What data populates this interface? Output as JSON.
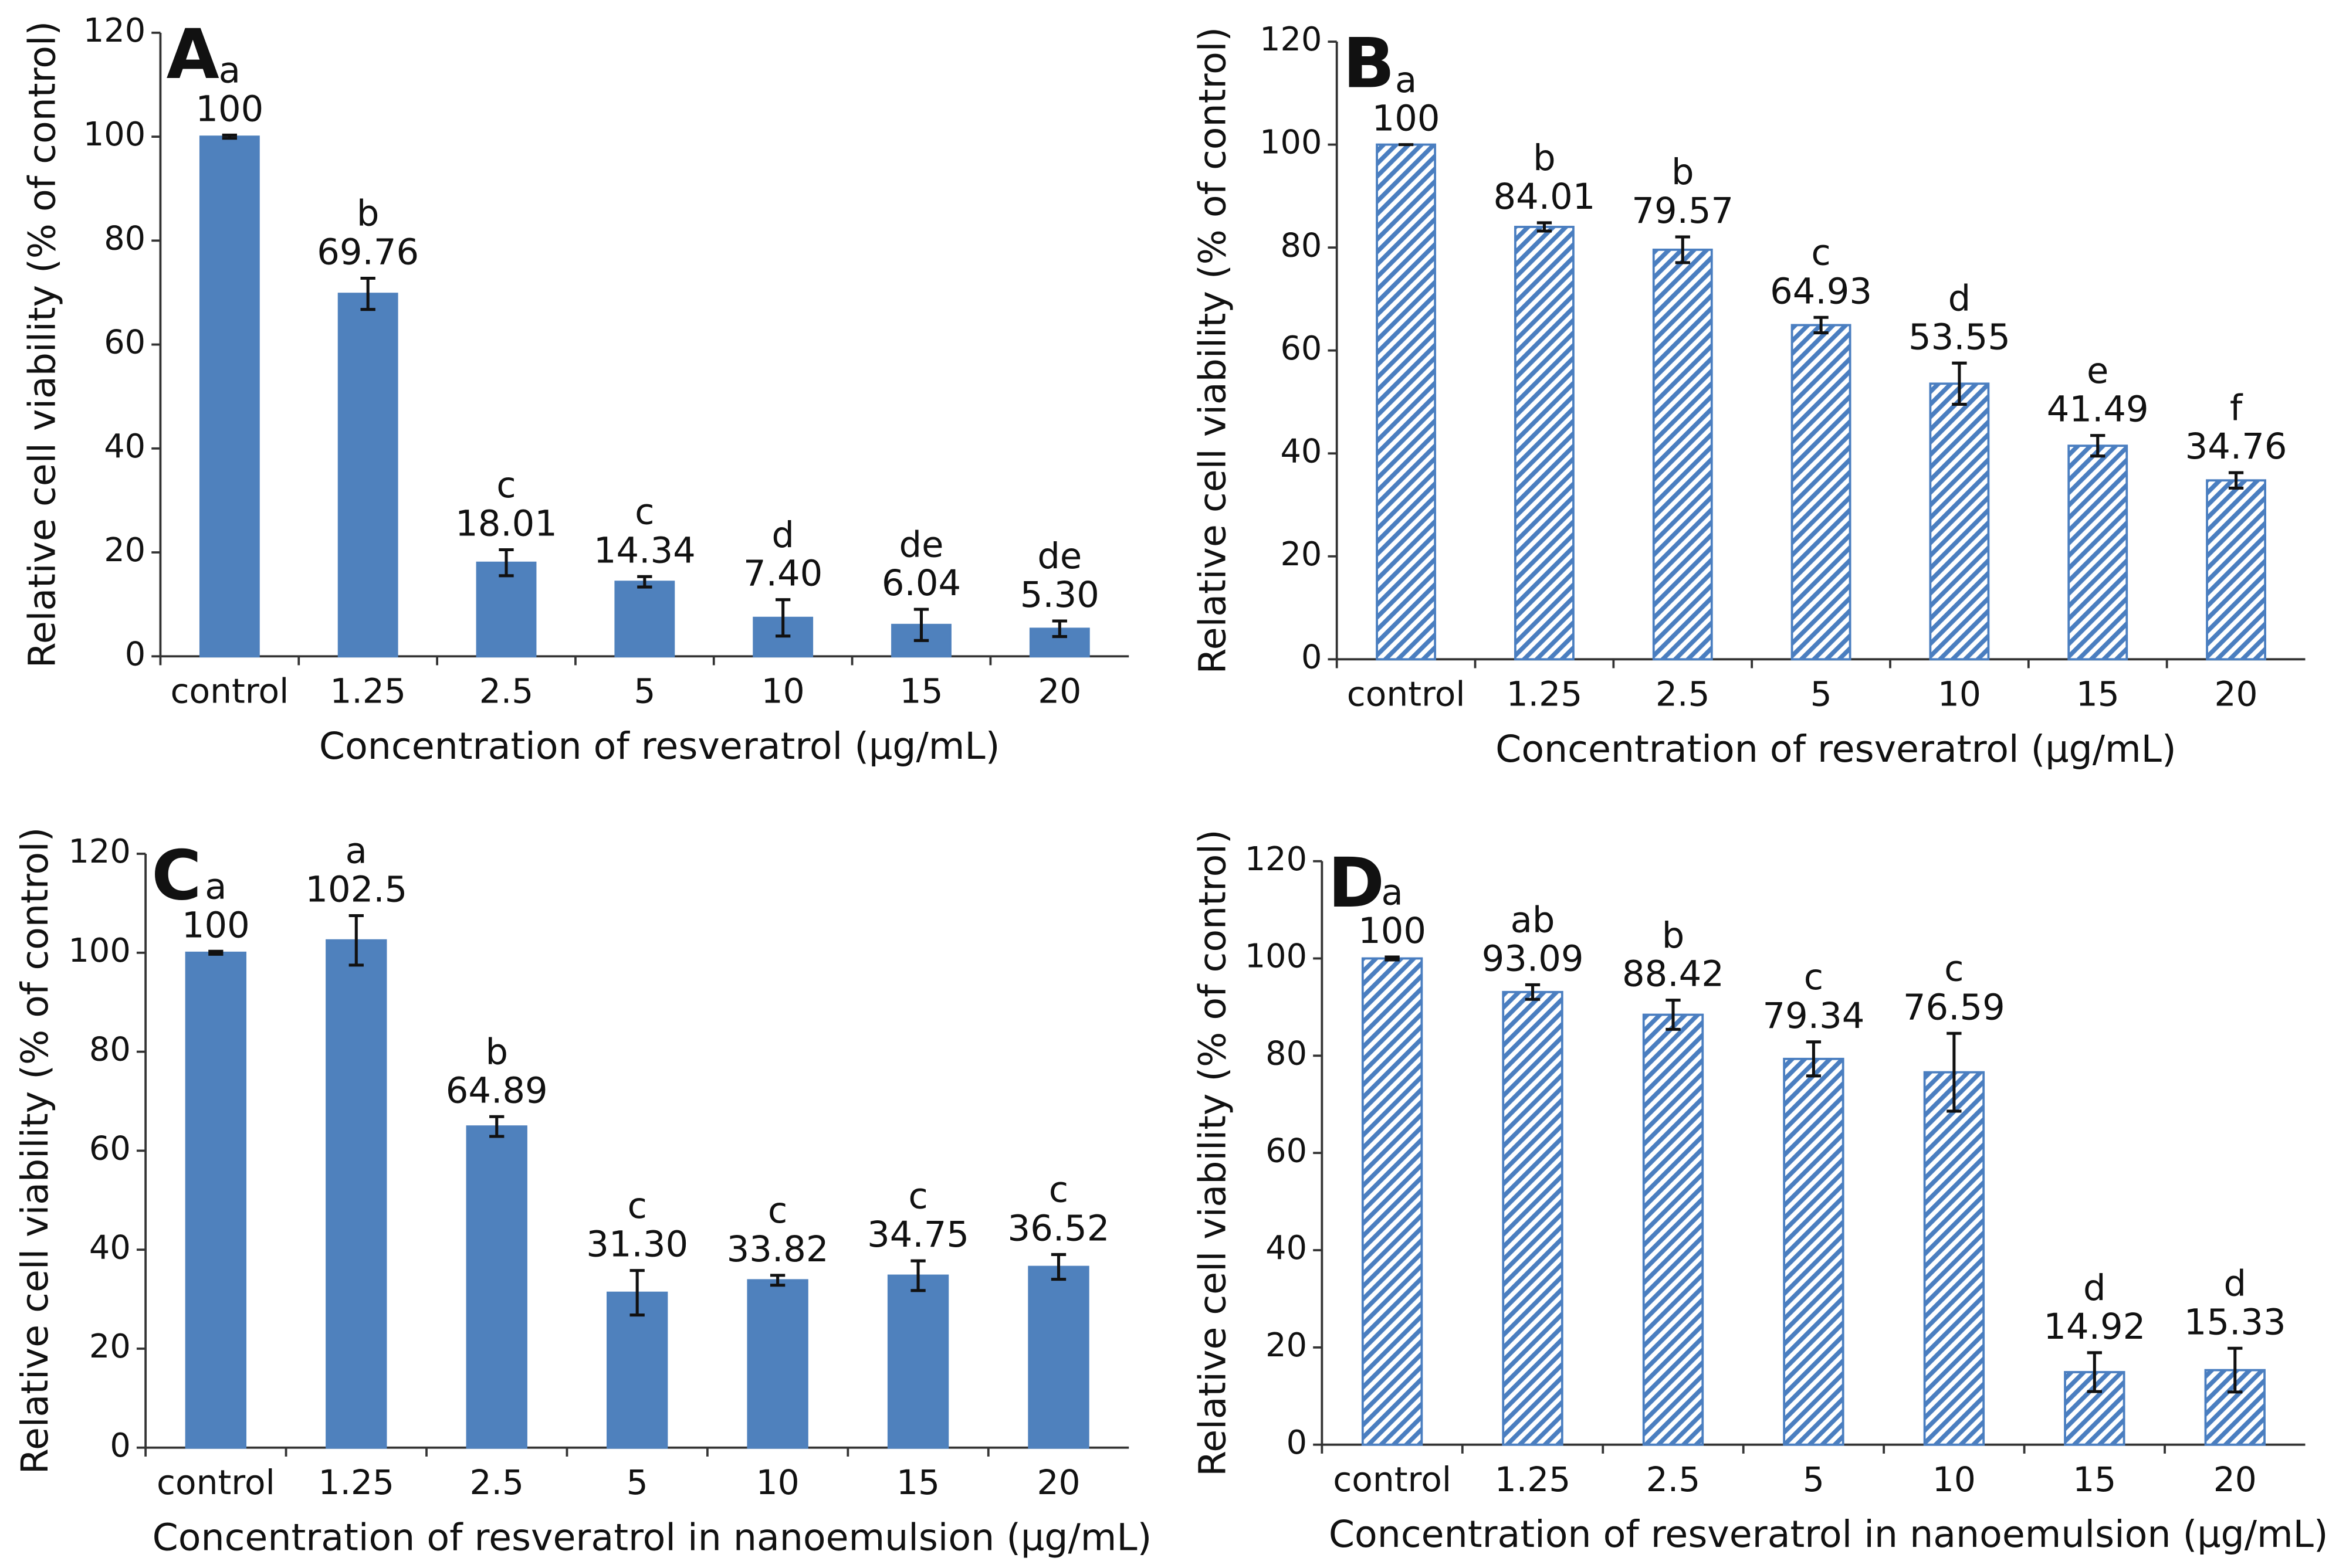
{
  "chart_data": [
    {
      "type": "bar",
      "panel": "A",
      "style": "solid",
      "color": "#4f81bd",
      "categories": [
        "control",
        "1.25",
        "2.5",
        "5",
        "10",
        "15",
        "20"
      ],
      "values": [
        100,
        69.76,
        18.01,
        14.34,
        7.4,
        6.04,
        5.3
      ],
      "value_labels": [
        "100",
        "69.76",
        "18.01",
        "14.34",
        "7.40",
        "6.04",
        "5.30"
      ],
      "errors": [
        0.3,
        3,
        2.5,
        1,
        3.5,
        3,
        1.5
      ],
      "letters": [
        "a",
        "b",
        "c",
        "c",
        "d",
        "de",
        "de"
      ],
      "xlabel": "Concentration of resveratrol (μg/mL)",
      "ylabel": "Relative cell viability (% of control)",
      "ylim": [
        0,
        120
      ],
      "yticks": [
        0,
        20,
        40,
        60,
        80,
        100,
        120
      ]
    },
    {
      "type": "bar",
      "panel": "B",
      "style": "hatched",
      "color": "#4a7ec0",
      "categories": [
        "control",
        "1.25",
        "2.5",
        "5",
        "10",
        "15",
        "20"
      ],
      "values": [
        100,
        84.01,
        79.57,
        64.93,
        53.55,
        41.49,
        34.76
      ],
      "value_labels": [
        "100",
        "84.01",
        "79.57",
        "64.93",
        "53.55",
        "41.49",
        "34.76"
      ],
      "errors": [
        0,
        0.8,
        2.5,
        1.5,
        4,
        2,
        1.5
      ],
      "letters": [
        "a",
        "b",
        "b",
        "c",
        "d",
        "e",
        "f"
      ],
      "xlabel": "Concentration of resveratrol (μg/mL)",
      "ylabel": "Relative cell viability (% of control)",
      "ylim": [
        0,
        120
      ],
      "yticks": [
        0,
        20,
        40,
        60,
        80,
        100,
        120
      ]
    },
    {
      "type": "bar",
      "panel": "C",
      "style": "solid",
      "color": "#4f81bd",
      "categories": [
        "control",
        "1.25",
        "2.5",
        "5",
        "10",
        "15",
        "20"
      ],
      "values": [
        100,
        102.5,
        64.89,
        31.3,
        33.82,
        34.75,
        36.52
      ],
      "value_labels": [
        "100",
        "102.5",
        "64.89",
        "31.30",
        "33.82",
        "34.75",
        "36.52"
      ],
      "errors": [
        0.3,
        5,
        2,
        4.5,
        1,
        3,
        2.5
      ],
      "letters": [
        "a",
        "a",
        "b",
        "c",
        "c",
        "c",
        "c"
      ],
      "xlabel": "Concentration of resveratrol in nanoemulsion (μg/mL)",
      "ylabel": "Relative cell viability (% of control)",
      "ylim": [
        0,
        120
      ],
      "yticks": [
        0,
        20,
        40,
        60,
        80,
        100,
        120
      ]
    },
    {
      "type": "bar",
      "panel": "D",
      "style": "hatched",
      "color": "#4a7ec0",
      "categories": [
        "control",
        "1.25",
        "2.5",
        "5",
        "10",
        "15",
        "20"
      ],
      "values": [
        100,
        93.09,
        88.42,
        79.34,
        76.59,
        14.92,
        15.33
      ],
      "value_labels": [
        "100",
        "93.09",
        "88.42",
        "79.34",
        "76.59",
        "14.92",
        "15.33"
      ],
      "errors": [
        0.3,
        1.5,
        3,
        3.5,
        8,
        4,
        4.5
      ],
      "letters": [
        "a",
        "ab",
        "b",
        "c",
        "c",
        "d",
        "d"
      ],
      "xlabel": "Concentration of resveratrol in nanoemulsion (μg/mL)",
      "ylabel": "Relative cell viability (% of control)",
      "ylim": [
        0,
        120
      ],
      "yticks": [
        0,
        20,
        40,
        60,
        80,
        100,
        120
      ]
    }
  ]
}
